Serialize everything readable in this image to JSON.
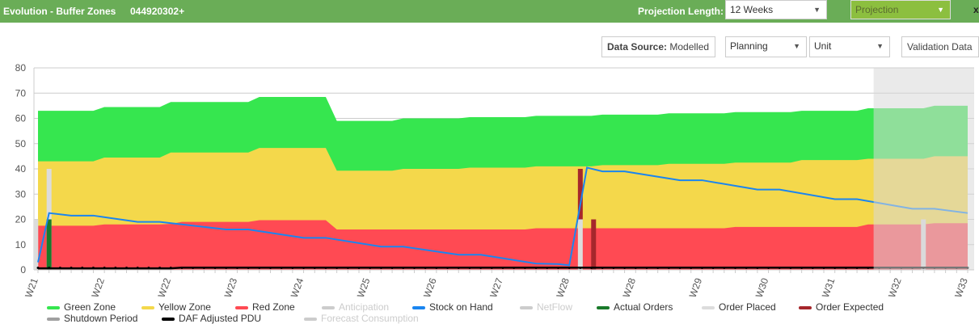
{
  "header": {
    "title": "Evolution - Buffer Zones",
    "item_code": "044920302+",
    "projection_length_label": "Projection Length:",
    "projection_length_value": "12 Weeks",
    "mode_value": "Projection",
    "close": "x"
  },
  "controls": {
    "data_source_label": "Data Source:",
    "data_source_value": "Modelled",
    "planning": "Planning",
    "unit": "Unit",
    "validation": "Validation Data"
  },
  "colors": {
    "header": "#6aad57",
    "green": "#36e64f",
    "yellow": "#f4d84b",
    "red": "#ff4a53",
    "stock": "#1a85f0",
    "actual": "#1a7a2a",
    "placed": "#dcdcdc",
    "expected": "#a6272c",
    "daf": "#000000",
    "projection_shade": "#d9d9d9"
  },
  "chart_data": {
    "type": "area",
    "ylim": [
      0,
      80
    ],
    "yticks": [
      0,
      10,
      20,
      30,
      40,
      50,
      60,
      70,
      80
    ],
    "grid": true,
    "x_tick_labels": [
      "W21",
      "W22",
      "W22",
      "W23",
      "W24",
      "W25",
      "W26",
      "W27",
      "W28",
      "W28",
      "W29",
      "W30",
      "W31",
      "W32",
      "W33"
    ],
    "x_tick_every": 6,
    "x_points": 85,
    "projection_start": 75.5,
    "series": [
      {
        "name": "Green Zone",
        "points": [
          [
            0,
            63
          ],
          [
            5,
            63
          ],
          [
            6,
            64.5
          ],
          [
            11,
            64.5
          ],
          [
            12,
            66.5
          ],
          [
            19,
            66.5
          ],
          [
            20,
            68.5
          ],
          [
            26,
            68.5
          ],
          [
            27,
            59
          ],
          [
            32,
            59
          ],
          [
            33,
            60
          ],
          [
            38,
            60
          ],
          [
            39,
            60.5
          ],
          [
            44,
            60.5
          ],
          [
            45,
            61
          ],
          [
            50,
            61
          ],
          [
            51,
            61.5
          ],
          [
            56,
            61.5
          ],
          [
            57,
            62
          ],
          [
            62,
            62
          ],
          [
            63,
            62.5
          ],
          [
            68,
            62.5
          ],
          [
            69,
            63
          ],
          [
            74,
            63
          ],
          [
            75,
            64
          ],
          [
            80,
            64
          ],
          [
            81,
            65
          ],
          [
            84,
            65
          ]
        ]
      },
      {
        "name": "Yellow Zone",
        "points": [
          [
            0,
            43
          ],
          [
            5,
            43
          ],
          [
            6,
            44.5
          ],
          [
            11,
            44.5
          ],
          [
            12,
            46.5
          ],
          [
            19,
            46.5
          ],
          [
            20,
            48.3
          ],
          [
            26,
            48.3
          ],
          [
            27,
            39.3
          ],
          [
            32,
            39.3
          ],
          [
            33,
            40
          ],
          [
            38,
            40
          ],
          [
            39,
            40.5
          ],
          [
            44,
            40.5
          ],
          [
            45,
            41
          ],
          [
            50,
            41
          ],
          [
            51,
            41.5
          ],
          [
            56,
            41.5
          ],
          [
            57,
            42
          ],
          [
            62,
            42
          ],
          [
            63,
            42.5
          ],
          [
            68,
            42.5
          ],
          [
            69,
            43.5
          ],
          [
            74,
            43.5
          ],
          [
            75,
            44
          ],
          [
            80,
            44
          ],
          [
            81,
            45
          ],
          [
            84,
            45
          ]
        ]
      },
      {
        "name": "Red Zone",
        "points": [
          [
            0,
            17.5
          ],
          [
            5,
            17.5
          ],
          [
            6,
            18
          ],
          [
            11,
            18
          ],
          [
            12,
            18.2
          ],
          [
            13,
            19
          ],
          [
            19,
            19
          ],
          [
            20,
            19.7
          ],
          [
            26,
            19.7
          ],
          [
            27,
            16
          ],
          [
            44,
            16
          ],
          [
            45,
            16.5
          ],
          [
            62,
            16.5
          ],
          [
            63,
            17
          ],
          [
            74,
            17
          ],
          [
            75,
            18
          ],
          [
            80,
            18
          ],
          [
            81,
            18.5
          ],
          [
            84,
            18.5
          ]
        ]
      },
      {
        "name": "Stock on Hand",
        "points": [
          [
            0,
            3
          ],
          [
            1,
            22.5
          ],
          [
            3,
            21.5
          ],
          [
            5,
            21.5
          ],
          [
            9,
            19
          ],
          [
            11,
            19
          ],
          [
            17,
            16
          ],
          [
            19,
            16
          ],
          [
            24,
            12.7
          ],
          [
            26,
            12.7
          ],
          [
            31,
            9.2
          ],
          [
            33,
            9.2
          ],
          [
            38,
            6
          ],
          [
            40,
            6
          ],
          [
            45,
            2.5
          ],
          [
            47,
            2.3
          ],
          [
            48,
            1.8
          ],
          [
            49.6,
            40.5
          ],
          [
            51,
            39
          ],
          [
            53,
            39
          ],
          [
            58,
            35.5
          ],
          [
            60,
            35.5
          ],
          [
            65,
            31.8
          ],
          [
            67,
            31.8
          ],
          [
            72,
            28
          ],
          [
            74,
            28
          ],
          [
            79,
            24.2
          ],
          [
            81,
            24.2
          ],
          [
            84,
            22.5
          ]
        ]
      },
      {
        "name": "DAF Adjusted PDU",
        "points": [
          [
            0,
            0.6
          ],
          [
            12,
            0.6
          ],
          [
            13,
            0.9
          ],
          [
            84,
            0.9
          ]
        ]
      },
      {
        "name": "Order Placed",
        "bars": [
          [
            -0.2,
            0,
            20
          ],
          [
            1,
            0,
            40
          ],
          [
            49,
            0,
            20
          ],
          [
            80,
            0,
            20
          ]
        ]
      },
      {
        "name": "Actual Orders",
        "bars": [
          [
            1,
            0,
            20
          ]
        ]
      },
      {
        "name": "Order Expected",
        "bars": [
          [
            49,
            20,
            40
          ],
          [
            50.2,
            0,
            20
          ]
        ]
      }
    ],
    "legend": [
      {
        "name": "Green Zone",
        "color": "#36e64f",
        "active": true
      },
      {
        "name": "Yellow Zone",
        "color": "#f4d84b",
        "active": true
      },
      {
        "name": "Red Zone",
        "color": "#ff4a53",
        "active": true
      },
      {
        "name": "Anticipation",
        "color": "#cccccc",
        "active": false
      },
      {
        "name": "Stock on Hand",
        "color": "#1a85f0",
        "active": true
      },
      {
        "name": "NetFlow",
        "color": "#cccccc",
        "active": false
      },
      {
        "name": "Actual Orders",
        "color": "#1a7a2a",
        "active": true
      },
      {
        "name": "Order Placed",
        "color": "#dcdcdc",
        "active": true
      },
      {
        "name": "Order Expected",
        "color": "#a6272c",
        "active": true
      },
      {
        "name": "Shutdown Period",
        "color": "#a0a0a0",
        "active": true
      },
      {
        "name": "DAF Adjusted PDU",
        "color": "#000000",
        "active": true
      },
      {
        "name": "Forecast Consumption",
        "color": "#cccccc",
        "active": false
      }
    ]
  }
}
